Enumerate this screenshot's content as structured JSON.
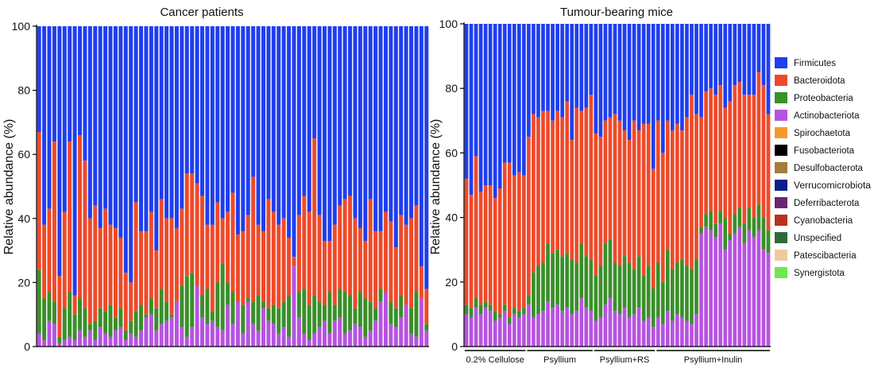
{
  "chart_data": [
    {
      "type": "stacked_bar",
      "title": "Cancer patients",
      "ylabel": "Relative abundance (%)",
      "ylim": [
        0,
        100
      ],
      "yticks": [
        0,
        20,
        40,
        60,
        80,
        100
      ],
      "segments": [
        "Actinobacteriota",
        "Proteobacteria",
        "Bacteroidota",
        "Firmicutes"
      ],
      "bacteroidota_top": [
        67,
        38,
        43,
        64,
        22,
        42,
        64,
        16,
        66,
        58,
        40,
        44,
        37,
        43,
        38,
        37,
        34,
        23,
        20,
        45,
        36,
        36,
        42,
        30,
        46,
        40,
        40,
        37,
        43,
        54,
        54,
        51,
        47,
        38,
        38,
        45,
        40,
        42,
        48,
        35,
        36,
        41,
        53,
        38,
        36,
        46,
        42,
        38,
        40,
        34,
        28,
        41,
        47,
        42,
        65,
        41,
        33,
        33,
        38,
        44,
        46,
        47,
        40,
        37,
        33,
        46,
        36,
        36,
        42,
        39,
        31,
        41,
        38,
        40,
        44,
        25,
        18
      ],
      "proteobacteria_top": [
        24,
        15,
        17,
        14,
        3,
        12,
        17,
        10,
        15,
        12,
        7,
        8,
        12,
        11,
        13,
        9,
        12,
        5,
        8,
        11,
        13,
        10,
        15,
        12,
        18,
        14,
        10,
        12,
        19,
        22,
        23,
        17,
        16,
        18,
        11,
        20,
        26,
        20,
        17,
        11,
        13,
        15,
        14,
        16,
        14,
        12,
        13,
        12,
        14,
        16,
        12,
        17,
        18,
        13,
        16,
        14,
        13,
        17,
        13,
        18,
        17,
        16,
        12,
        17,
        15,
        14,
        12,
        18,
        17,
        14,
        12,
        16,
        13,
        12,
        17,
        10,
        7
      ],
      "actinobacteriota_top": [
        4,
        2,
        8,
        7,
        1,
        2,
        3,
        2,
        5,
        3,
        5,
        2,
        6,
        4,
        3,
        5,
        6,
        2,
        4,
        3,
        5,
        9,
        10,
        5,
        7,
        8,
        9,
        14,
        6,
        3,
        6,
        19,
        9,
        7,
        8,
        6,
        5,
        13,
        7,
        14,
        4,
        14,
        7,
        5,
        12,
        8,
        7,
        4,
        6,
        3,
        25,
        9,
        4,
        2,
        4,
        6,
        8,
        4,
        8,
        9,
        4,
        5,
        7,
        6,
        3,
        5,
        8,
        14,
        17,
        7,
        6,
        9,
        13,
        4,
        3,
        15,
        5
      ]
    },
    {
      "type": "stacked_bar",
      "title": "Tumour-bearing mice",
      "ylabel": "Relative abundance (%)",
      "ylim": [
        0,
        100
      ],
      "yticks": [
        0,
        20,
        40,
        60,
        80,
        100
      ],
      "segments": [
        "Actinobacteriota",
        "Proteobacteria",
        "Bacteroidota",
        "Firmicutes"
      ],
      "bacteroidota_top": [
        52,
        47,
        59,
        48,
        50,
        50,
        46,
        49,
        57,
        57,
        53,
        54,
        53,
        65,
        72,
        71,
        73,
        73,
        70,
        73,
        71,
        76,
        64,
        74,
        73,
        74,
        78,
        66,
        65,
        70,
        71,
        72,
        70,
        67,
        64,
        70,
        67,
        69,
        69,
        55,
        70,
        60,
        70,
        67,
        69,
        67,
        71,
        78,
        72,
        71,
        79,
        80,
        78,
        81,
        74,
        76,
        81,
        82,
        78,
        78,
        78,
        85,
        81,
        72
      ],
      "proteobacteria_top": [
        13,
        12,
        15,
        13,
        14,
        13,
        11,
        10,
        13,
        9,
        12,
        11,
        12,
        16,
        23,
        25,
        26,
        32,
        29,
        30,
        28,
        29,
        27,
        26,
        32,
        28,
        27,
        22,
        25,
        32,
        33,
        26,
        25,
        28,
        26,
        24,
        28,
        22,
        25,
        18,
        26,
        20,
        30,
        24,
        26,
        27,
        25,
        24,
        27,
        37,
        41,
        42,
        38,
        42,
        40,
        35,
        41,
        43,
        38,
        43,
        40,
        44,
        40,
        36
      ],
      "actinobacteriota_top": [
        10,
        9,
        12,
        10,
        12,
        11,
        8,
        9,
        11,
        7,
        10,
        9,
        10,
        13,
        9,
        10,
        11,
        14,
        12,
        13,
        11,
        12,
        10,
        11,
        15,
        12,
        11,
        8,
        9,
        13,
        15,
        11,
        10,
        12,
        9,
        10,
        12,
        8,
        9,
        6,
        9,
        7,
        11,
        8,
        10,
        9,
        8,
        7,
        10,
        35,
        37,
        36,
        34,
        38,
        30,
        33,
        35,
        37,
        32,
        36,
        34,
        36,
        30,
        29
      ],
      "groups": [
        {
          "label": "0.2% Cellulose",
          "start": 0,
          "end": 12
        },
        {
          "label": "Psyllium",
          "start": 13,
          "end": 26
        },
        {
          "label": "Psyllium+RS",
          "start": 27,
          "end": 39
        },
        {
          "label": "Psyllium+Inulin",
          "start": 40,
          "end": 63
        }
      ]
    }
  ],
  "legend": [
    {
      "name": "Firmicutes",
      "color": "#1f3ef0"
    },
    {
      "name": "Bacteroidota",
      "color": "#ee4a2a"
    },
    {
      "name": "Proteobacteria",
      "color": "#3a8f2a"
    },
    {
      "name": "Actinobacteriota",
      "color": "#b653e0"
    },
    {
      "name": "Spirochaetota",
      "color": "#f29b2a"
    },
    {
      "name": "Fusobacteriota",
      "color": "#000000"
    },
    {
      "name": "Desulfobacterota",
      "color": "#a37c3a"
    },
    {
      "name": "Verrucomicrobiota",
      "color": "#0b1f8a"
    },
    {
      "name": "Deferribacterota",
      "color": "#6b2670"
    },
    {
      "name": "Cyanobacteria",
      "color": "#b8321e"
    },
    {
      "name": "Unspecified",
      "color": "#2e6b3a"
    },
    {
      "name": "Patescibacteria",
      "color": "#efc9a0"
    },
    {
      "name": "Synergistota",
      "color": "#6ee84a"
    }
  ]
}
